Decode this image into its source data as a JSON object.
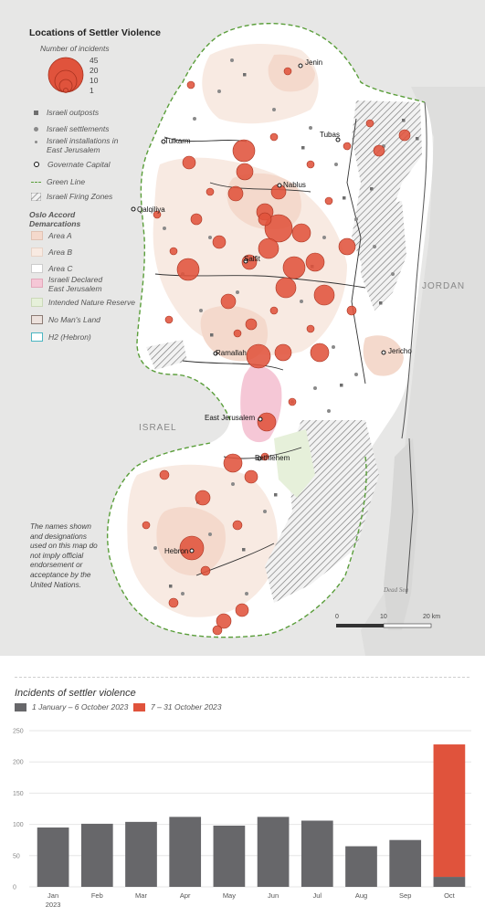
{
  "map": {
    "legend": {
      "title": "Locations of Settler Violence",
      "incidents_label": "Number of incidents",
      "bubble_scale": [
        "45",
        "20",
        "10",
        "1"
      ],
      "items": [
        {
          "label": "Israeli outposts",
          "icon": "square-marker"
        },
        {
          "label": "Israeli settlements",
          "icon": "dot-marker"
        },
        {
          "label": "Israeli installations in East Jerusalem",
          "icon": "small-dot-marker"
        },
        {
          "label": "Governate Capital",
          "icon": "ring-marker"
        },
        {
          "label": "Green Line",
          "icon": "dashed-green-line"
        },
        {
          "label": "Israeli Firing Zones",
          "icon": "hatched-area"
        }
      ],
      "oslo_heading": "Oslo Accord Demarcations",
      "areas": [
        {
          "label": "Area A",
          "color": "#f4d9cc"
        },
        {
          "label": "Area B",
          "color": "#f8eae2"
        },
        {
          "label": "Area C",
          "color": "#ffffff"
        },
        {
          "label": "Israeli Declared East Jerusalem",
          "color": "#f5c7d6"
        },
        {
          "label": "Intended Nature Reserve",
          "color": "#e6f0da"
        },
        {
          "label": "No Man's Land",
          "color": "#ece1dc"
        },
        {
          "label": "H2 (Hebron)",
          "color": "#ffffff"
        }
      ]
    },
    "disclaimer": "The names shown and designations used on this map do not imply official endorsement or acceptance by the United Nations.",
    "places": [
      {
        "name": "Jenin"
      },
      {
        "name": "Tulkarm"
      },
      {
        "name": "Tubas"
      },
      {
        "name": "Nablus"
      },
      {
        "name": "Qalqiliya"
      },
      {
        "name": "Salfit"
      },
      {
        "name": "Ramallah"
      },
      {
        "name": "Jericho"
      },
      {
        "name": "East Jerusalem"
      },
      {
        "name": "Bethlehem"
      },
      {
        "name": "Hebron"
      }
    ],
    "regions": {
      "israel": "ISRAEL",
      "jordan": "JORDAN",
      "sea": "Dead Sea"
    },
    "scale": {
      "start": "0",
      "mid": "10",
      "end": "20 km"
    },
    "colors": {
      "incident": "#e0533c",
      "area_a": "#f4d9cc",
      "area_b": "#f8eae2",
      "green_line": "#5a9e3a",
      "background": "#e7e7e6"
    }
  },
  "chart": {
    "title": "Incidents of settler violence",
    "legend": [
      {
        "label": "1 January – 6 October 2023",
        "color": "#67676a"
      },
      {
        "label": "7 – 31 October 2023",
        "color": "#e0533c"
      }
    ],
    "year_label": "2023"
  },
  "chart_data": {
    "type": "bar",
    "stacked": true,
    "title": "Incidents of settler violence",
    "categories": [
      "Jan",
      "Feb",
      "Mar",
      "Apr",
      "May",
      "Jun",
      "Jul",
      "Aug",
      "Sep",
      "Oct"
    ],
    "series": [
      {
        "name": "1 January – 6 October 2023",
        "color": "#67676a",
        "values": [
          95,
          101,
          104,
          112,
          98,
          112,
          106,
          65,
          75,
          16
        ]
      },
      {
        "name": "7 – 31 October 2023",
        "color": "#e0533c",
        "values": [
          0,
          0,
          0,
          0,
          0,
          0,
          0,
          0,
          0,
          212
        ]
      }
    ],
    "yticks": [
      0,
      50,
      100,
      150,
      200,
      250
    ],
    "ylim": [
      0,
      250
    ],
    "grid": true
  }
}
